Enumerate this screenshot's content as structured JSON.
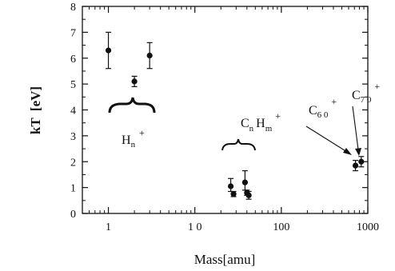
{
  "chart_data": {
    "type": "scatter",
    "title": "",
    "xlabel": "Mass[amu]",
    "ylabel": "kT  [eV]",
    "xscale": "log",
    "xlim": [
      0.5,
      1000
    ],
    "ylim": [
      0,
      8
    ],
    "x_ticks": [
      {
        "value": 1,
        "label": "1"
      },
      {
        "value": 10,
        "label": "1 0"
      },
      {
        "value": 100,
        "label": "100"
      },
      {
        "value": 1000,
        "label": "1000"
      }
    ],
    "y_ticks": [
      0,
      1,
      2,
      3,
      4,
      5,
      6,
      7,
      8
    ],
    "grid": false,
    "legend": "none",
    "points": [
      {
        "x": 1,
        "y": 6.3,
        "err_low": 0.7,
        "err_high": 0.7
      },
      {
        "x": 2,
        "y": 5.1,
        "err_low": 0.2,
        "err_high": 0.2
      },
      {
        "x": 3,
        "y": 6.1,
        "err_low": 0.5,
        "err_high": 0.5
      },
      {
        "x": 26,
        "y": 1.05,
        "err_low": 0.2,
        "err_high": 0.3
      },
      {
        "x": 28,
        "y": 0.75,
        "err_low": 0.1,
        "err_high": 0.1
      },
      {
        "x": 38,
        "y": 1.2,
        "err_low": 0.3,
        "err_high": 0.45
      },
      {
        "x": 40,
        "y": 0.8,
        "err_low": 0.1,
        "err_high": 0.1
      },
      {
        "x": 42,
        "y": 0.7,
        "err_low": 0.15,
        "err_high": 0.15
      },
      {
        "x": 720,
        "y": 1.85,
        "err_low": 0.2,
        "err_high": 0.2
      },
      {
        "x": 840,
        "y": 2.0,
        "err_low": 0.2,
        "err_high": 0.2
      }
    ],
    "annotations": [
      {
        "id": "hn",
        "main": "H",
        "sub1": "n",
        "sup": "+"
      },
      {
        "id": "cnhm",
        "main1": "C",
        "sub1": "n",
        "main2": "H",
        "sub2": "m",
        "sup": "+"
      },
      {
        "id": "c60",
        "main": "C",
        "sub1": "6 0",
        "sup": "+"
      },
      {
        "id": "c70",
        "main": "C",
        "sub1": "7 0",
        "sup": "+"
      }
    ]
  }
}
